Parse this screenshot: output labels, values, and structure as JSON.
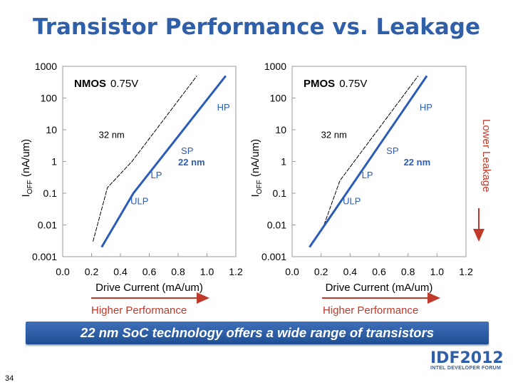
{
  "slide": {
    "title": "Transistor Performance vs. Leakage",
    "banner": "22 nm SoC technology offers a wide range of transistors",
    "logo_main": "IDF2012",
    "logo_sub": "INTEL DEVELOPER FORUM",
    "page_number": "34",
    "lower_leakage_label": "Lower Leakage",
    "higher_performance_label": "Higher Performance",
    "accent_color": "#2f5fa8",
    "arrow_color": "#c0392b"
  },
  "chart_data": [
    {
      "type": "line",
      "device": "NMOS",
      "voltage": "0.75V",
      "xlabel": "Drive Current (mA/um)",
      "ylabel": "I",
      "ylabel_sub": "OFF",
      "ylabel_unit": " (nA/um)",
      "xlim": [
        0,
        1.2
      ],
      "ylim": [
        0.001,
        1000
      ],
      "yscale": "log",
      "x_ticks": [
        "0.0",
        "0.2",
        "0.4",
        "0.6",
        "0.8",
        "1.0",
        "1.2"
      ],
      "y_ticks": [
        "1000",
        "100",
        "10",
        "1",
        "0.1",
        "0.01",
        "0.001"
      ],
      "series": [
        {
          "name": "32 nm",
          "style": "dashed",
          "color": "#000000",
          "points": [
            [
              0.21,
              0.003
            ],
            [
              0.31,
              0.15
            ],
            [
              0.48,
              1.0
            ],
            [
              0.93,
              500
            ]
          ]
        },
        {
          "name": "22 nm",
          "style": "solid",
          "color": "#2a5cb8",
          "points": [
            [
              0.27,
              0.002
            ],
            [
              0.49,
              0.1
            ],
            [
              1.13,
              500
            ]
          ]
        }
      ],
      "labels": {
        "hp": "HP",
        "sp": "SP",
        "lp": "LP",
        "ulp": "ULP",
        "old_node": "32 nm",
        "new_node": "22 nm"
      }
    },
    {
      "type": "line",
      "device": "PMOS",
      "voltage": "0.75V",
      "xlabel": "Drive Current (mA/um)",
      "ylabel": "I",
      "ylabel_sub": "OFF",
      "ylabel_unit": " (nA/um)",
      "xlim": [
        0,
        1.2
      ],
      "ylim": [
        0.001,
        1000
      ],
      "yscale": "log",
      "x_ticks": [
        "0.0",
        "0.2",
        "0.4",
        "0.6",
        "0.8",
        "1.0",
        "1.2"
      ],
      "y_ticks": [
        "1000",
        "100",
        "10",
        "1",
        "0.1",
        "0.01",
        "0.001"
      ],
      "series": [
        {
          "name": "32 nm",
          "style": "dashed",
          "color": "#000000",
          "points": [
            [
              0.22,
              0.01
            ],
            [
              0.33,
              0.25
            ],
            [
              0.87,
              500
            ]
          ]
        },
        {
          "name": "22 nm",
          "style": "solid",
          "color": "#2a5cb8",
          "points": [
            [
              0.12,
              0.002
            ],
            [
              0.93,
              500
            ]
          ]
        }
      ],
      "labels": {
        "hp": "HP",
        "sp": "SP",
        "lp": "LP",
        "ulp": "ULP",
        "old_node": "32 nm",
        "new_node": "22 nm"
      }
    }
  ]
}
